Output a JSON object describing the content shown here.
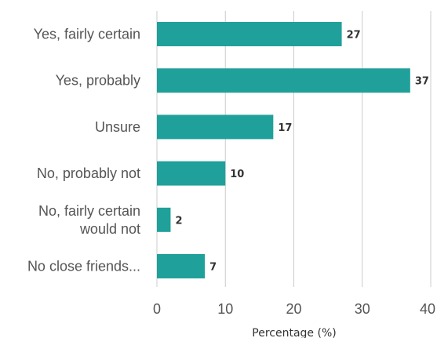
{
  "chart_data": {
    "type": "bar",
    "orientation": "horizontal",
    "categories": [
      [
        "Yes, fairly certain"
      ],
      [
        "Yes, probably"
      ],
      [
        "Unsure"
      ],
      [
        "No, probably not"
      ],
      [
        "No, fairly certain",
        "would not"
      ],
      [
        "No close friends..."
      ]
    ],
    "values": [
      27,
      37,
      17,
      10,
      2,
      7
    ],
    "xlabel": "Percentage (%)",
    "ylabel": "",
    "title": "",
    "xlim": [
      0,
      40
    ],
    "xticks": [
      0,
      10,
      20,
      30,
      40
    ],
    "grid": true,
    "bar_color": "#20a09a",
    "legend": "none"
  }
}
